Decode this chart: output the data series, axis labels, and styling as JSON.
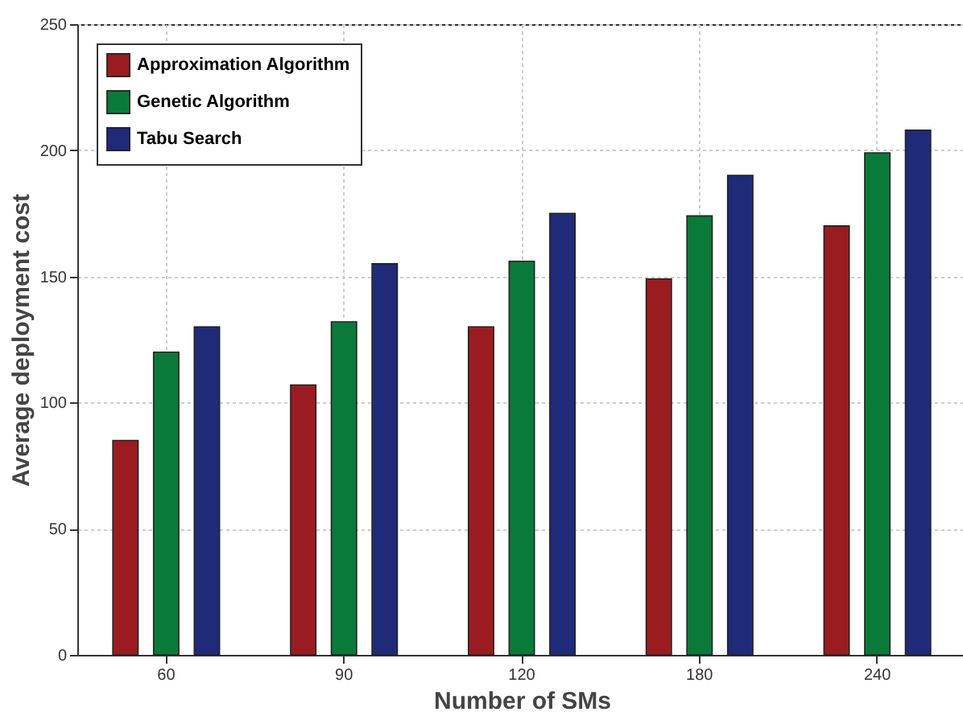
{
  "chart_data": {
    "type": "bar",
    "xlabel": "Number of SMs",
    "ylabel": "Average deployment cost",
    "categories": [
      "60",
      "90",
      "120",
      "180",
      "240"
    ],
    "series": [
      {
        "name": "Approximation Algorithm",
        "color": "#9b1c20",
        "values": [
          85,
          107,
          130,
          149,
          170
        ]
      },
      {
        "name": "Genetic Algorithm",
        "color": "#0a7a3a",
        "values": [
          120,
          132,
          156,
          174,
          199
        ]
      },
      {
        "name": "Tabu Search",
        "color": "#1f2a78",
        "values": [
          130,
          155,
          175,
          190,
          208
        ]
      }
    ],
    "ylim": [
      0,
      250
    ],
    "yticks": [
      0,
      50,
      100,
      150,
      200,
      250
    ],
    "grid": true,
    "legend": "top left"
  }
}
